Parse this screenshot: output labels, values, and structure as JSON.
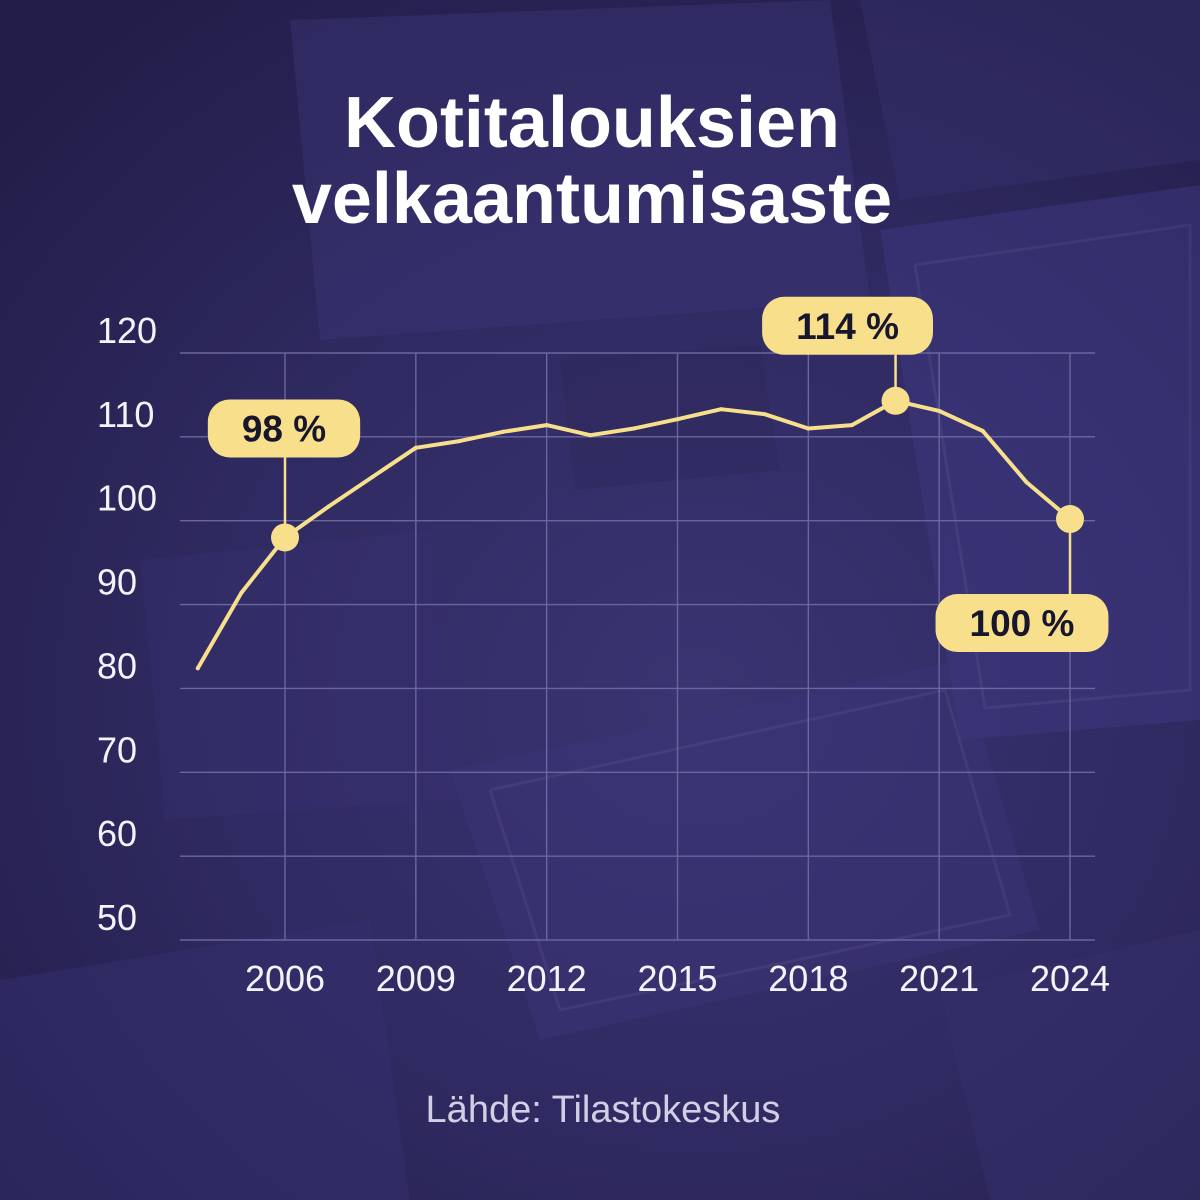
{
  "colors": {
    "background": "#2c2859",
    "accent": "#f8df8b",
    "title_text": "#ffffff",
    "tick_text": "#f4f2fb",
    "callout_text": "#17162c",
    "source_text": "#d2cee6",
    "grid": "#6a66a0"
  },
  "chart_data": {
    "type": "line",
    "title": "Kotitalouksien velkaantumisaste",
    "x": [
      2004,
      2005,
      2006,
      2007,
      2008,
      2009,
      2010,
      2011,
      2012,
      2013,
      2014,
      2015,
      2016,
      2017,
      2018,
      2019,
      2020,
      2021,
      2022,
      2023,
      2024
    ],
    "values": [
      82.4,
      91.4,
      98.0,
      101.7,
      105.2,
      108.7,
      109.5,
      110.6,
      111.4,
      110.2,
      111.0,
      112.1,
      113.3,
      112.7,
      111.0,
      111.4,
      114.3,
      113.1,
      110.7,
      104.6,
      100.2
    ],
    "xticks": [
      2006,
      2009,
      2012,
      2015,
      2018,
      2021,
      2024
    ],
    "yticks": [
      50,
      60,
      70,
      80,
      90,
      100,
      110,
      120
    ],
    "ylim": [
      50,
      120
    ],
    "grid": true,
    "annotations": [
      {
        "x": 2006,
        "label": "98 %"
      },
      {
        "x": 2020,
        "label": "114 %"
      },
      {
        "x": 2024,
        "label": "100 %"
      }
    ],
    "source": "Lähde: Tilastokeskus"
  }
}
